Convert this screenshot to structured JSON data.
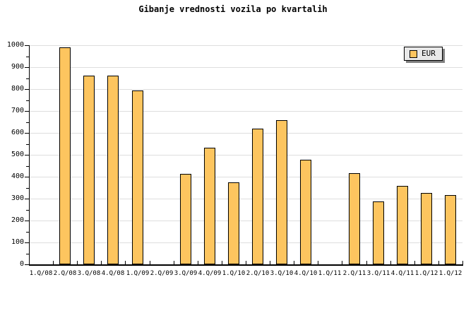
{
  "chart_data": {
    "type": "bar",
    "title": "Gibanje vrednosti vozila po kvartalih",
    "categories": [
      "1.Q/08",
      "2.Q/08",
      "3.Q/08",
      "4.Q/08",
      "1.Q/09",
      "2.Q/09",
      "3.Q/09",
      "4.Q/09",
      "1.Q/10",
      "2.Q/10",
      "3.Q/10",
      "4.Q/10",
      "1.Q/11",
      "2.Q/11",
      "3.Q/11",
      "4.Q/11",
      "1.Q/12",
      "1.Q/12"
    ],
    "values": [
      null,
      990,
      862,
      862,
      795,
      null,
      414,
      531,
      373,
      620,
      658,
      477,
      null,
      417,
      286,
      358,
      327,
      315
    ],
    "xlabel": "",
    "ylabel": "",
    "ylim": [
      0,
      1000
    ],
    "yticks": [
      0,
      100,
      200,
      300,
      400,
      500,
      600,
      700,
      800,
      900,
      1000
    ],
    "ytick_minor_step": 50,
    "grid": "horizontal",
    "legend": [
      "EUR"
    ],
    "legend_position": "top-right"
  },
  "colors": {
    "bar_fill": "#FDC55F",
    "bar_border": "#000000",
    "grid": "#DEDEDE",
    "axis": "#000000",
    "legend_bg": "#E8E8E8",
    "legend_shadow": "#808080",
    "background": "#FFFFFF",
    "text": "#000000"
  }
}
